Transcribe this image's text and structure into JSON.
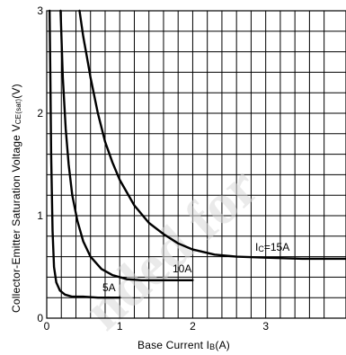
{
  "chart_data": {
    "type": "line",
    "xlabel": "Base Current I",
    "xlabel_sub": "B",
    "xlabel_unit": "(A)",
    "ylabel": "Collector-Emitter Saturation Voltage V",
    "ylabel_sub": "CE(sat)",
    "ylabel_unit": "(V)",
    "xlim": [
      0,
      4.1
    ],
    "ylim": [
      0,
      3
    ],
    "x_ticks": [
      "0",
      "1",
      "2",
      "3"
    ],
    "x_tick_values": [
      0,
      1,
      2,
      3
    ],
    "y_ticks": [
      "0",
      "1",
      "2",
      "3"
    ],
    "y_tick_values": [
      0,
      1,
      2,
      3
    ],
    "grid": true,
    "grid_x_step": 0.2,
    "grid_y_step": 0.2,
    "series": [
      {
        "label": "5A",
        "x": [
          0.04,
          0.05,
          0.06,
          0.08,
          0.1,
          0.13,
          0.18,
          0.25,
          0.35,
          0.5,
          0.7,
          1.0
        ],
        "y": [
          3.0,
          2.3,
          1.6,
          0.85,
          0.5,
          0.35,
          0.27,
          0.23,
          0.21,
          0.21,
          0.2,
          0.2
        ]
      },
      {
        "label": "10A",
        "x": [
          0.19,
          0.22,
          0.26,
          0.3,
          0.35,
          0.42,
          0.5,
          0.6,
          0.75,
          0.9,
          1.1,
          1.3,
          1.6,
          2.0
        ],
        "y": [
          3.0,
          2.35,
          1.85,
          1.5,
          1.2,
          0.95,
          0.75,
          0.6,
          0.48,
          0.42,
          0.38,
          0.37,
          0.37,
          0.37
        ]
      },
      {
        "label": "Ic=15A",
        "x": [
          0.45,
          0.5,
          0.55,
          0.6,
          0.7,
          0.8,
          0.9,
          1.0,
          1.2,
          1.4,
          1.6,
          1.8,
          2.0,
          2.3,
          2.6,
          3.0,
          3.5,
          4.1
        ],
        "y": [
          3.0,
          2.75,
          2.55,
          2.35,
          2.0,
          1.72,
          1.52,
          1.35,
          1.1,
          0.93,
          0.82,
          0.73,
          0.67,
          0.62,
          0.6,
          0.59,
          0.58,
          0.58
        ]
      }
    ],
    "series_labels_display": [
      {
        "main": "5A",
        "sub": ""
      },
      {
        "main": "10A",
        "sub": ""
      },
      {
        "main": "I",
        "sub": "C",
        "rest": "=15A"
      }
    ]
  },
  "watermark": {
    "text": "nded for",
    "color": "#d9d9d9"
  }
}
